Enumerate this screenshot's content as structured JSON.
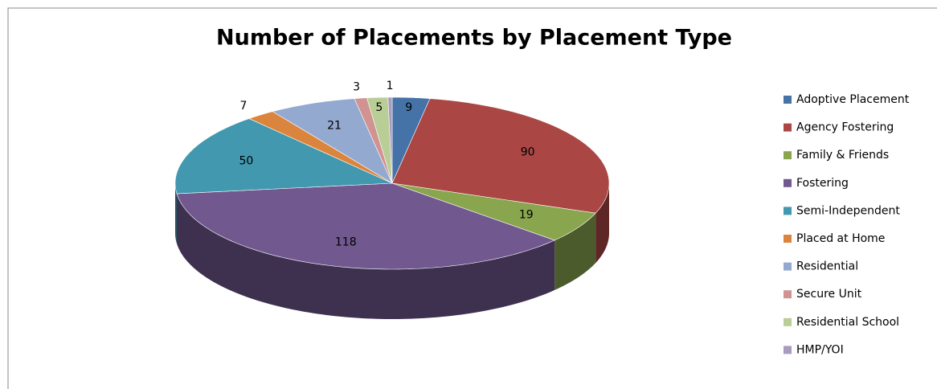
{
  "chart_data": {
    "type": "pie3d",
    "title": "Number of Placements by Placement Type",
    "categories": [
      "Adoptive Placement",
      "Agency Fostering",
      "Family & Friends",
      "Fostering",
      "Semi-Independent",
      "Placed at Home",
      "Residential",
      "Secure Unit",
      "Residential School",
      "HMP/YOI"
    ],
    "values": [
      9,
      90,
      19,
      118,
      50,
      7,
      21,
      3,
      5,
      1
    ],
    "colors": [
      "#4572a7",
      "#aa4643",
      "#89a54e",
      "#71588f",
      "#4198af",
      "#db843d",
      "#93a9cf",
      "#d19392",
      "#b9cd96",
      "#a99bbd"
    ],
    "legend": "right"
  }
}
